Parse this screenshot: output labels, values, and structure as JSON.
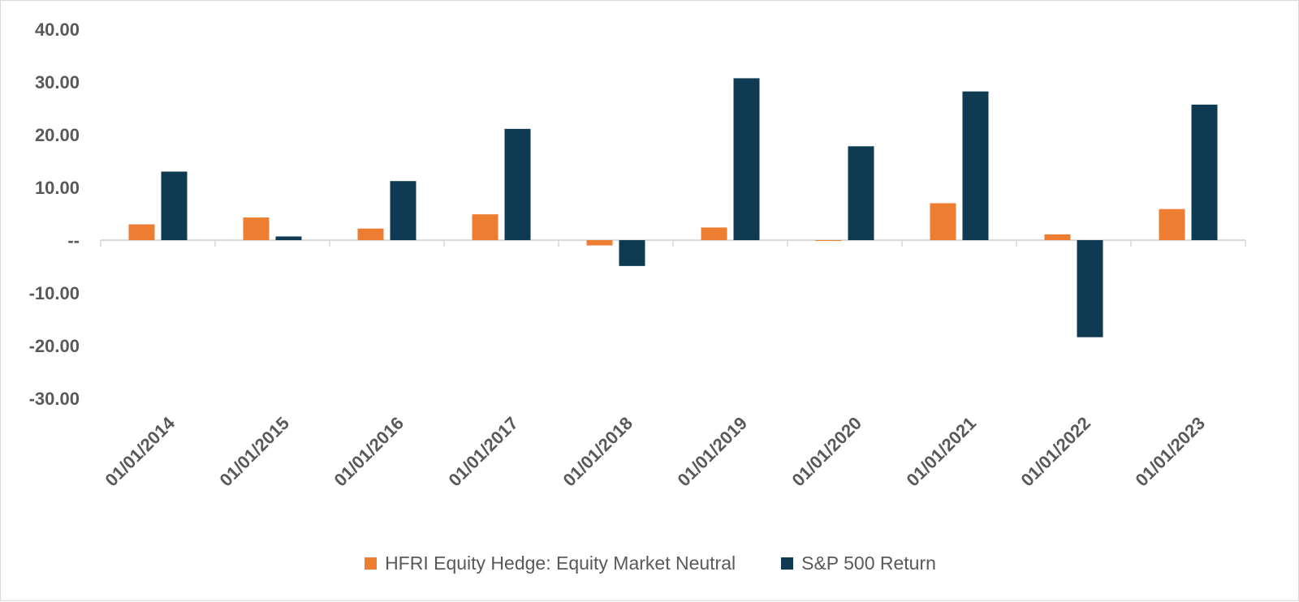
{
  "chart_data": {
    "type": "bar",
    "categories": [
      "01/01/2014",
      "01/01/2015",
      "01/01/2016",
      "01/01/2017",
      "01/01/2018",
      "01/01/2019",
      "01/01/2020",
      "01/01/2021",
      "01/01/2022",
      "01/01/2023"
    ],
    "series": [
      {
        "name": "HFRI Equity Hedge: Equity Market Neutral",
        "color": "#ED7D31",
        "values": [
          3.0,
          4.3,
          2.2,
          4.9,
          -1.0,
          2.4,
          -0.1,
          7.0,
          1.1,
          5.9
        ]
      },
      {
        "name": "S&P 500 Return",
        "color": "#0E3A52",
        "values": [
          13.0,
          0.7,
          11.2,
          21.1,
          -4.9,
          30.7,
          17.8,
          28.2,
          -18.4,
          25.7
        ]
      }
    ],
    "ylim": [
      -30,
      40
    ],
    "yticks": [
      40,
      30,
      20,
      10,
      0,
      -10,
      -20,
      -30
    ],
    "ytick_labels": [
      "40.00",
      "30.00",
      "20.00",
      "10.00",
      "--",
      "-10.00",
      "-20.00",
      "-30.00"
    ],
    "grid": false,
    "legend_position": "bottom"
  }
}
